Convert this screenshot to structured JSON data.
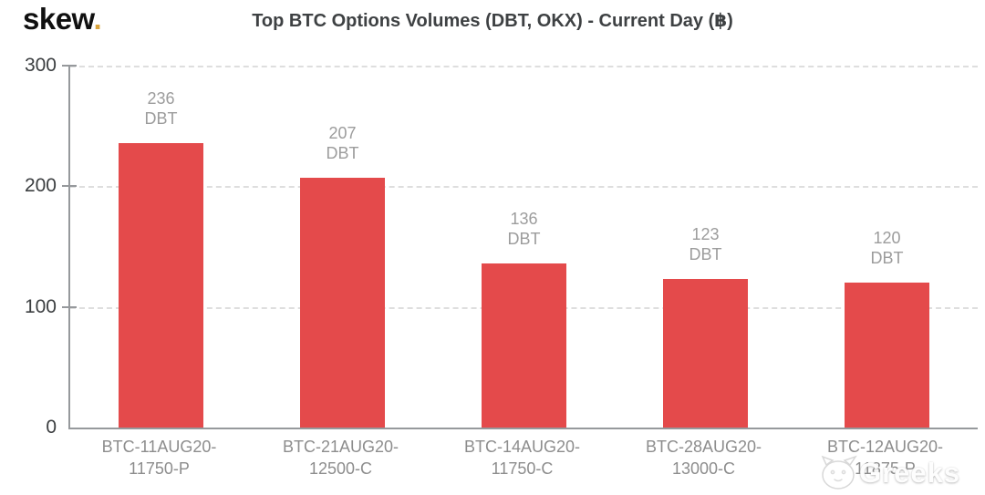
{
  "logo": {
    "text": "skew",
    "dot": "."
  },
  "title": "Top BTC Options Volumes (DBT, OKX) - Current Day (฿)",
  "watermark": {
    "text": "Greeks"
  },
  "colors": {
    "bar": "#e44a4b",
    "axis": "#96999c",
    "grid": "#dedede",
    "value_label": "#9c9c9c",
    "x_label": "#8d8d8d",
    "y_label": "#3b3e40",
    "logo_dot": "#d9a33c"
  },
  "chart_data": {
    "type": "bar",
    "title": "Top BTC Options Volumes (DBT, OKX) - Current Day (฿)",
    "categories": [
      {
        "line1": "BTC-11AUG20-",
        "line2": "11750-P"
      },
      {
        "line1": "BTC-21AUG20-",
        "line2": "12500-C"
      },
      {
        "line1": "BTC-14AUG20-",
        "line2": "11750-C"
      },
      {
        "line1": "BTC-28AUG20-",
        "line2": "13000-C"
      },
      {
        "line1": "BTC-12AUG20-",
        "line2": "11875-P"
      }
    ],
    "values": [
      236,
      207,
      136,
      123,
      120
    ],
    "bar_sublabel": "DBT",
    "xlabel": "",
    "ylabel": "",
    "ylim": [
      0,
      300
    ],
    "yticks": [
      0,
      100,
      200,
      300
    ],
    "grid": "horizontal-dashed",
    "legend": "none"
  }
}
